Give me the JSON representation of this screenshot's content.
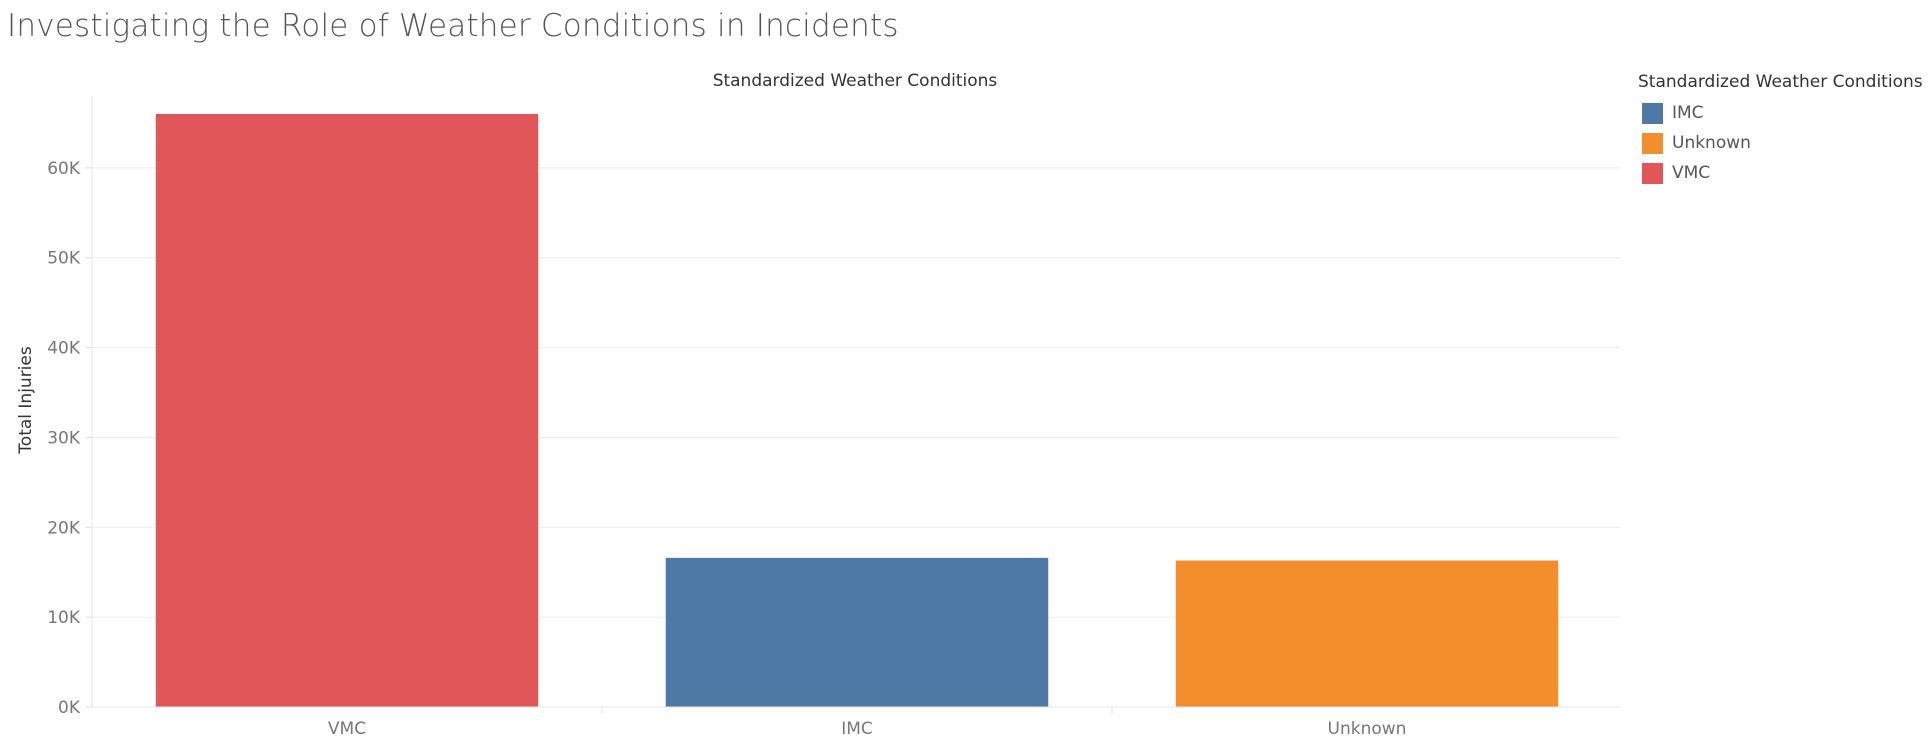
{
  "page": {
    "title": "Investigating the Role of Weather Conditions in Incidents"
  },
  "legend": {
    "title": "Standardized Weather Conditions",
    "items": [
      {
        "label": "IMC",
        "color": "#4e79a7"
      },
      {
        "label": "Unknown",
        "color": "#f28e2b"
      },
      {
        "label": "VMC",
        "color": "#e15759"
      }
    ]
  },
  "chart_data": {
    "type": "bar",
    "title": "Standardized Weather Conditions",
    "ylabel": "Total Injuries",
    "xlabel": "",
    "categories": [
      "VMC",
      "IMC",
      "Unknown"
    ],
    "values": [
      66000,
      16600,
      16300
    ],
    "colors": [
      "#e15759",
      "#4e79a7",
      "#f28e2b"
    ],
    "ylim": [
      0,
      68000
    ],
    "yticks": [
      0,
      10000,
      20000,
      30000,
      40000,
      50000,
      60000
    ],
    "ytick_labels": [
      "0K",
      "10K",
      "20K",
      "30K",
      "40K",
      "50K",
      "60K"
    ],
    "grid": true,
    "legend_position": "right"
  }
}
